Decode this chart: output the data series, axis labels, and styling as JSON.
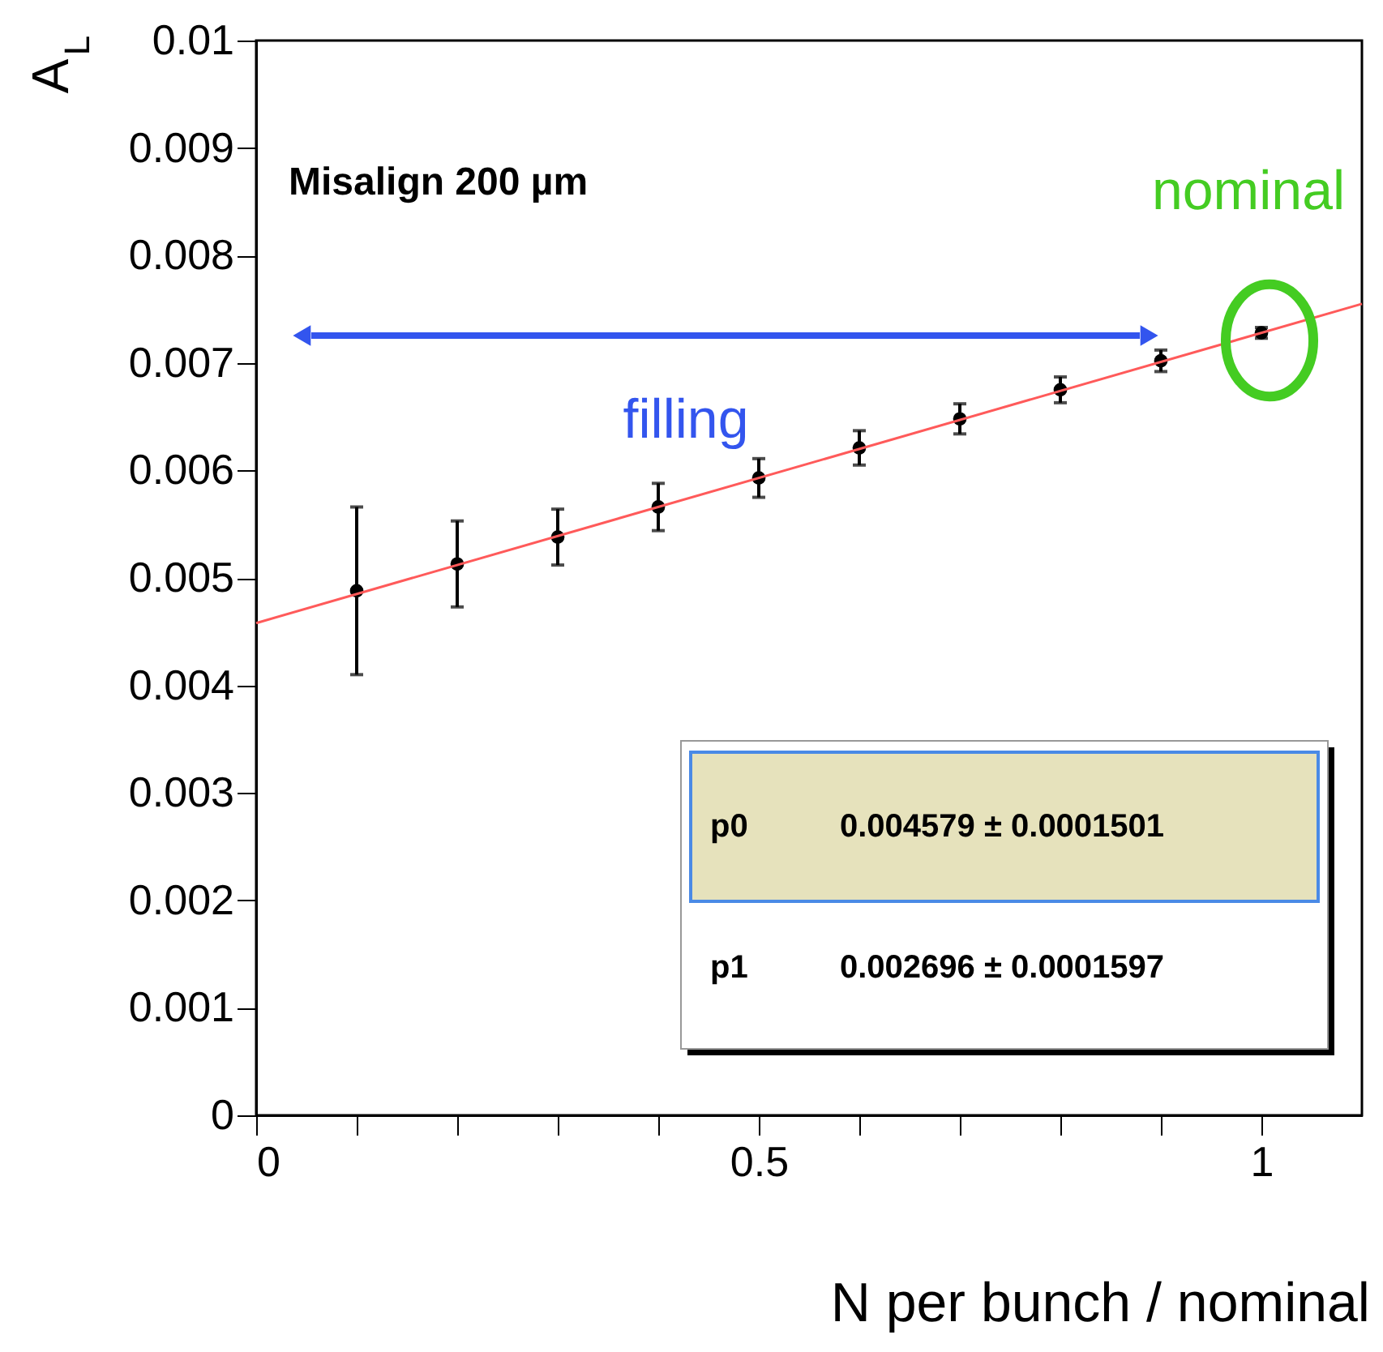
{
  "chart_data": {
    "type": "scatter",
    "xlabel": "N per bunch / nominal",
    "ylabel": "A$_{L}$",
    "x": [
      0.1,
      0.2,
      0.3,
      0.4,
      0.5,
      0.6,
      0.7,
      0.8,
      0.9,
      1.0
    ],
    "series": [
      {
        "marker": "circle",
        "color": "#000000",
        "values": [
          0.00488,
          0.00513,
          0.00538,
          0.00566,
          0.00593,
          0.00621,
          0.00648,
          0.00675,
          0.00702,
          0.00728
        ],
        "errors": [
          0.00078,
          0.0004,
          0.00026,
          0.00022,
          0.00018,
          0.00016,
          0.00014,
          0.00012,
          0.0001,
          5e-05
        ]
      },
      {
        "type": "line",
        "marker": "none",
        "line_style": "solid",
        "color": "#ff5a5a",
        "x": [
          0,
          1.1
        ],
        "values": [
          0.00458,
          0.00755
        ]
      }
    ],
    "xlim": [
      0,
      1.1
    ],
    "ylim": [
      0,
      0.01
    ],
    "xticks": [
      0,
      {
        "value": 0.1,
        "label": null
      },
      {
        "value": 0.2,
        "label": null
      },
      {
        "value": 0.3,
        "label": null
      },
      {
        "value": 0.4,
        "label": null
      },
      0.5,
      {
        "value": 0.6,
        "label": null
      },
      {
        "value": 0.7,
        "label": null
      },
      {
        "value": 0.8,
        "label": null
      },
      {
        "value": 0.9,
        "label": null
      },
      1
    ],
    "yticks": [
      0,
      0.001,
      0.002,
      0.003,
      0.004,
      0.005,
      0.006,
      0.007,
      0.008,
      0.009,
      0.01
    ],
    "grid": false,
    "annotations": [
      "Misalign 200 µm",
      "nominal",
      "filling",
      "p0",
      "0.004579 ± 0.0001501",
      "p1",
      "0.002696 ± 0.0001597"
    ]
  }
}
